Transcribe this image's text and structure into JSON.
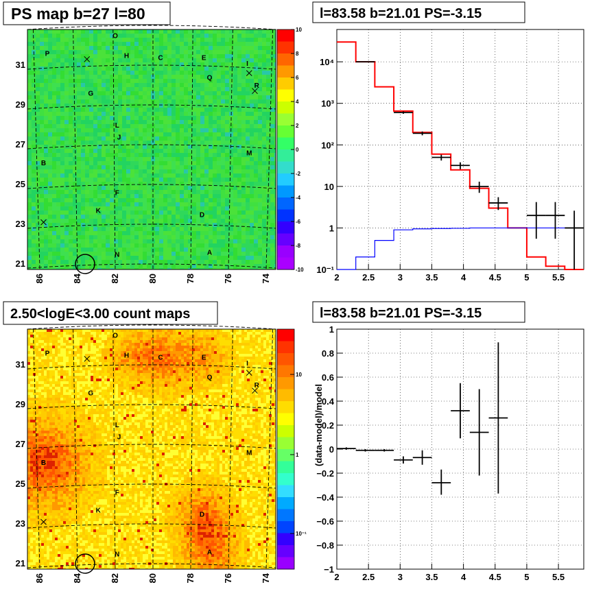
{
  "panels": {
    "map_top_title": "PS map b=27 l=80",
    "map_bottom_title": "2.50<logE<3.00 count maps",
    "spec_title": "l=83.58 b=21.01 PS=-3.15",
    "resid_title": "l=83.58 b=21.01 PS=-3.15"
  },
  "map_axes": {
    "x_ticks": [
      "86",
      "84",
      "82",
      "80",
      "78",
      "76",
      "74"
    ],
    "y_ticks": [
      "21",
      "23",
      "25",
      "27",
      "29",
      "31"
    ]
  },
  "ps_colorbar_ticks": [
    "10",
    "8",
    "6",
    "4",
    "2",
    "0",
    "-2",
    "-4",
    "-6",
    "-8",
    "-10"
  ],
  "count_colorbar_ticks": [
    "10",
    "1",
    "10⁻¹"
  ],
  "sources": [
    {
      "label": "O",
      "l": 82.0,
      "b": 32.5
    },
    {
      "label": "P",
      "l": 85.6,
      "b": 31.6
    },
    {
      "label": "H",
      "l": 81.4,
      "b": 31.5
    },
    {
      "label": "C",
      "l": 79.6,
      "b": 31.4
    },
    {
      "label": "E",
      "l": 77.3,
      "b": 31.4
    },
    {
      "label": "I",
      "l": 75.0,
      "b": 31.1
    },
    {
      "label": "Q",
      "l": 77.0,
      "b": 30.4
    },
    {
      "label": "R",
      "l": 74.5,
      "b": 30.0
    },
    {
      "label": "G",
      "l": 83.3,
      "b": 29.6
    },
    {
      "label": "L",
      "l": 81.9,
      "b": 28.0
    },
    {
      "label": "J",
      "l": 81.8,
      "b": 27.4
    },
    {
      "label": "M",
      "l": 74.9,
      "b": 26.6
    },
    {
      "label": "B",
      "l": 85.8,
      "b": 26.1
    },
    {
      "label": "F",
      "l": 81.9,
      "b": 24.6
    },
    {
      "label": "K",
      "l": 82.9,
      "b": 23.7
    },
    {
      "label": "D",
      "l": 77.4,
      "b": 23.5
    },
    {
      "label": "N",
      "l": 81.9,
      "b": 21.5
    },
    {
      "label": "A",
      "l": 77.0,
      "b": 21.6
    }
  ],
  "crosses": [
    {
      "l": 83.5,
      "b": 31.3
    },
    {
      "l": 74.9,
      "b": 30.6
    },
    {
      "l": 74.6,
      "b": 29.7
    },
    {
      "l": 85.8,
      "b": 23.1
    }
  ],
  "circle": {
    "l": 83.6,
    "b": 21.0
  },
  "chart_data": [
    {
      "type": "line",
      "title": "l=83.58 b=21.01 PS=-3.15",
      "xlabel": "",
      "ylabel": "",
      "x_ticks": [
        "2",
        "2.5",
        "3",
        "3.5",
        "4",
        "4.5",
        "5",
        "5.5"
      ],
      "y_ticks": [
        "10⁻¹",
        "1",
        "10",
        "10²",
        "10³",
        "10⁴"
      ],
      "xlim": [
        2,
        5.9
      ],
      "ylim": [
        0.1,
        60000
      ],
      "y_scale": "log",
      "series": [
        {
          "color": "#ff0000",
          "type": "step",
          "edges": [
            2.0,
            2.3,
            2.6,
            2.9,
            3.2,
            3.5,
            3.8,
            4.1,
            4.4,
            4.7,
            5.0,
            5.3,
            5.6,
            5.9
          ],
          "values": [
            30000,
            10000,
            2500,
            650,
            200,
            60,
            25,
            9,
            3,
            1,
            0.2,
            0.12,
            0.1
          ]
        },
        {
          "color": "#0000ff",
          "type": "step",
          "edges": [
            2.0,
            2.3,
            2.6,
            2.9,
            3.2,
            3.5,
            3.8,
            4.1,
            4.4,
            4.7,
            5.0,
            5.3,
            5.6,
            5.9
          ],
          "values": [
            0.1,
            0.2,
            0.5,
            0.9,
            0.95,
            0.97,
            0.98,
            1.0,
            1.0,
            1.0,
            1.0,
            1.0,
            1.0
          ]
        },
        {
          "color": "#000000",
          "type": "errorbar",
          "points": [
            {
              "x": 2.45,
              "y": 10000,
              "xerr": 0.15,
              "ylo": 9800,
              "yhi": 10200
            },
            {
              "x": 3.05,
              "y": 600,
              "xerr": 0.15,
              "ylo": 560,
              "yhi": 640
            },
            {
              "x": 3.35,
              "y": 190,
              "xerr": 0.15,
              "ylo": 170,
              "yhi": 210
            },
            {
              "x": 3.65,
              "y": 50,
              "xerr": 0.15,
              "ylo": 42,
              "yhi": 58
            },
            {
              "x": 3.95,
              "y": 32,
              "xerr": 0.15,
              "ylo": 26,
              "yhi": 38
            },
            {
              "x": 4.25,
              "y": 10,
              "xerr": 0.15,
              "ylo": 7,
              "yhi": 13
            },
            {
              "x": 4.55,
              "y": 4,
              "xerr": 0.15,
              "ylo": 2.7,
              "yhi": 5.5
            },
            {
              "x": 5.15,
              "y": 2,
              "xerr": 0.15,
              "ylo": 0.55,
              "yhi": 4.2
            },
            {
              "x": 5.45,
              "y": 2,
              "xerr": 0.15,
              "ylo": 0.55,
              "yhi": 4.2
            },
            {
              "x": 5.75,
              "y": 1,
              "xerr": 0.15,
              "ylo": 0.1,
              "yhi": 2.6
            }
          ]
        }
      ]
    },
    {
      "type": "scatter",
      "title": "l=83.58 b=21.01 PS=-3.15",
      "xlabel": "",
      "ylabel": "(data-model)/model",
      "x_ticks": [
        "2",
        "2.5",
        "3",
        "3.5",
        "4",
        "4.5",
        "5",
        "5.5"
      ],
      "y_ticks": [
        "−1",
        "−0.8",
        "−0.6",
        "−0.4",
        "−0.2",
        "0",
        "0.2",
        "0.4",
        "0.6",
        "0.8",
        "1"
      ],
      "xlim": [
        2,
        5.9
      ],
      "ylim": [
        -1,
        1
      ],
      "series": [
        {
          "color": "#000000",
          "type": "errorbar",
          "points": [
            {
              "x": 2.15,
              "y": 0.005,
              "xerr": 0.15,
              "ylo": -0.005,
              "yhi": 0.015
            },
            {
              "x": 2.45,
              "y": -0.01,
              "xerr": 0.15,
              "ylo": -0.02,
              "yhi": 0.0
            },
            {
              "x": 2.75,
              "y": -0.01,
              "xerr": 0.15,
              "ylo": -0.02,
              "yhi": 0.0
            },
            {
              "x": 3.05,
              "y": -0.09,
              "xerr": 0.15,
              "ylo": -0.12,
              "yhi": -0.06
            },
            {
              "x": 3.35,
              "y": -0.07,
              "xerr": 0.15,
              "ylo": -0.13,
              "yhi": -0.01
            },
            {
              "x": 3.65,
              "y": -0.28,
              "xerr": 0.15,
              "ylo": -0.38,
              "yhi": -0.17
            },
            {
              "x": 3.95,
              "y": 0.32,
              "xerr": 0.15,
              "ylo": 0.09,
              "yhi": 0.55
            },
            {
              "x": 4.25,
              "y": 0.14,
              "xerr": 0.15,
              "ylo": -0.22,
              "yhi": 0.5
            },
            {
              "x": 4.55,
              "y": 0.26,
              "xerr": 0.15,
              "ylo": -0.37,
              "yhi": 0.89
            }
          ]
        }
      ]
    }
  ]
}
